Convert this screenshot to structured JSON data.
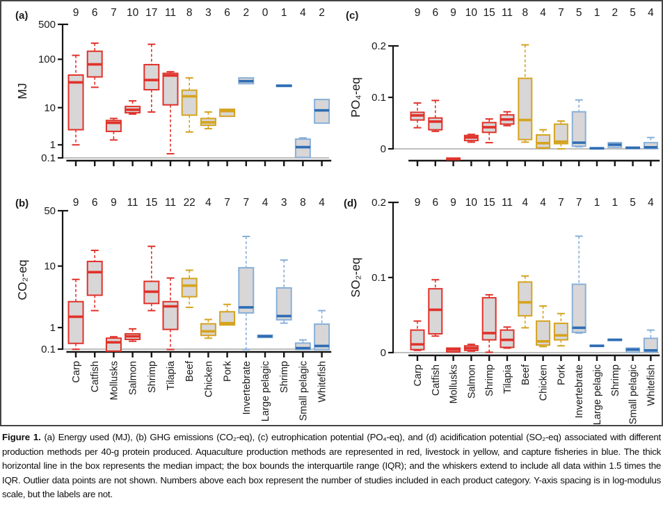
{
  "figure": {
    "caption_label": "Figure 1.",
    "caption_text": "(a) Energy used (MJ), (b) GHG emissions (CO₂-eq), (c) eutrophication potential (PO₄-eq), and (d) acidification potential (SO₂-eq) associated with different production methods per 40-g protein produced. Aquaculture production methods are represented in red, livestock in yellow, and capture fisheries in blue. The thick horizontal line in the box represents the median impact; the box bounds the interquartile range (IQR); and the whiskers extend to include all data within 1.5 times the IQR. Outlier data points are not shown. Numbers above each box represent the number of studies included in each product category. Y-axis spacing is in log-modulus scale, but the labels are not."
  },
  "colors": {
    "aquaculture_red": "#e0312a",
    "livestock_yellow": "#d5a31e",
    "fisheries_blue_border": "#88b0da",
    "fisheries_blue_median": "#2e6db4",
    "box_fill": "#d8d6d6",
    "axis_black": "#141414",
    "baseline_gray": "#a9a9a9",
    "text_color": "#1a1a1a"
  },
  "categories": [
    "Carp",
    "Catfish",
    "Mollusks",
    "Salmon",
    "Shrimp",
    "Tilapia",
    "Beef",
    "Chicken",
    "Pork",
    "Invertebrate",
    "Large pelagic",
    "Shrimp",
    "Small pelagic",
    "Whitefish"
  ],
  "category_groups": [
    "aquaculture",
    "aquaculture",
    "aquaculture",
    "aquaculture",
    "aquaculture",
    "aquaculture",
    "livestock",
    "livestock",
    "livestock",
    "fisheries",
    "fisheries",
    "fisheries",
    "fisheries",
    "fisheries"
  ],
  "chart_data": [
    {
      "type": "box",
      "panel_label": "(a)",
      "ylabel": "MJ",
      "scale": "log-modulus",
      "yticks": [
        "500",
        "100",
        "10",
        "1",
        "0.1"
      ],
      "ytick_values": [
        500,
        100,
        10,
        1,
        0.1
      ],
      "ylim": [
        0.1,
        500
      ],
      "counts": [
        9,
        6,
        7,
        10,
        17,
        11,
        8,
        3,
        6,
        2,
        0,
        1,
        4,
        2
      ],
      "show_category_labels": false,
      "boxes": [
        {
          "lo": 1,
          "q1": 3,
          "med": 34,
          "q3": 48,
          "hi": 120
        },
        {
          "lo": 27,
          "q1": 44,
          "med": 79,
          "q3": 145,
          "hi": 210
        },
        {
          "lo": 1.5,
          "q1": 2.7,
          "med": 4.5,
          "q3": 5.1,
          "hi": 5.7
        },
        {
          "lo": 7.2,
          "q1": 7.7,
          "med": 9,
          "q3": 10.6,
          "hi": 14
        },
        {
          "lo": 8,
          "q1": 24,
          "med": 38,
          "q3": 78,
          "hi": 200
        },
        {
          "lo": 0.33,
          "q1": 11.5,
          "med": 47,
          "q3": 52,
          "hi": 56
        },
        {
          "lo": 2.6,
          "q1": 6.8,
          "med": 17.5,
          "q3": 23.5,
          "hi": 42
        },
        {
          "lo": 3.2,
          "q1": 3.9,
          "med": 4.6,
          "q3": 5.7,
          "hi": 8
        },
        {
          "q1": 6.4,
          "med": 8.4,
          "q3": 9.2
        },
        {
          "q1": 32,
          "med": 36,
          "q3": 42
        },
        null,
        {
          "med": 29
        },
        {
          "q1": 0.12,
          "med": 0.8,
          "q3": 1.6,
          "hi": 1.75
        },
        {
          "q1": 4.4,
          "med": 8.7,
          "q3": 15
        }
      ]
    },
    {
      "type": "box",
      "panel_label": "(b)",
      "ylabel": "CO₂-eq",
      "scale": "log-modulus",
      "yticks": [
        "50",
        "10",
        "1",
        "0.1"
      ],
      "ytick_values": [
        50,
        10,
        1,
        0.1
      ],
      "ylim": [
        0.1,
        50
      ],
      "counts": [
        9,
        6,
        9,
        11,
        15,
        11,
        22,
        4,
        7,
        7,
        4,
        3,
        8,
        4
      ],
      "show_category_labels": true,
      "boxes": [
        {
          "lo": 0.095,
          "q1": 0.29,
          "med": 1.7,
          "q3": 3.1,
          "hi": 6.6
        },
        {
          "lo": 2.2,
          "q1": 3.9,
          "med": 8.3,
          "q3": 11.5,
          "hi": 16
        },
        {
          "q1": 0.04,
          "med": 0.33,
          "q3": 0.49,
          "hi": 0.55
        },
        {
          "lo": 0.37,
          "q1": 0.44,
          "med": 0.57,
          "q3": 0.68,
          "hi": 0.93
        },
        {
          "lo": 2.2,
          "q1": 2.9,
          "med": 4.4,
          "q3": 6.2,
          "hi": 18
        },
        {
          "lo": 0.09,
          "q1": 0.9,
          "med": 2.6,
          "q3": 3.1,
          "hi": 6.9
        },
        {
          "lo": 2.5,
          "q1": 3.7,
          "med": 5.4,
          "q3": 6.8,
          "hi": 8.8
        },
        {
          "lo": 0.49,
          "q1": 0.61,
          "med": 0.8,
          "q3": 1.22,
          "hi": 1.5
        },
        {
          "q1": 1.15,
          "med": 1.26,
          "q3": 2.1,
          "hi": 2.8
        },
        {
          "lo": 0.09,
          "q1": 2.0,
          "med": 2.5,
          "q3": 9.5,
          "hi": 24
        },
        {
          "q1": 0.52,
          "med": 0.57,
          "q3": 0.62
        },
        {
          "lo": 1.26,
          "q1": 1.48,
          "med": 1.75,
          "q3": 5.0,
          "hi": 12
        },
        {
          "q1": 0.09,
          "med": 0.13,
          "q3": 0.3,
          "hi": 0.42
        },
        {
          "q1": 0.085,
          "med": 0.2,
          "q3": 1.2,
          "hi": 2.2
        }
      ]
    },
    {
      "type": "box",
      "panel_label": "(c)",
      "ylabel": "PO₄-eq",
      "scale": "linear",
      "yticks": [
        "0.2",
        "0.1",
        "0"
      ],
      "ytick_values": [
        0.2,
        0.1,
        0
      ],
      "ylim": [
        0,
        0.2
      ],
      "counts": [
        9,
        6,
        9,
        10,
        15,
        11,
        8,
        4,
        7,
        5,
        1,
        2,
        5,
        4
      ],
      "show_category_labels": false,
      "boxes": [
        {
          "lo": 0.041,
          "q1": 0.056,
          "med": 0.065,
          "q3": 0.071,
          "hi": 0.089
        },
        {
          "lo": 0.034,
          "q1": 0.037,
          "med": 0.053,
          "q3": 0.06,
          "hi": 0.094
        },
        {
          "q1": -0.021,
          "med": -0.02,
          "q3": -0.018
        },
        {
          "lo": 0.013,
          "q1": 0.016,
          "med": 0.022,
          "q3": 0.026,
          "hi": 0.028
        },
        {
          "lo": 0.012,
          "q1": 0.032,
          "med": 0.042,
          "q3": 0.051,
          "hi": 0.058
        },
        {
          "lo": 0.045,
          "q1": 0.048,
          "med": 0.057,
          "q3": 0.066,
          "hi": 0.072
        },
        {
          "lo": 0.013,
          "q1": 0.018,
          "med": 0.056,
          "q3": 0.137,
          "hi": 0.202
        },
        {
          "lo": 0.001,
          "q1": 0.002,
          "med": 0.011,
          "q3": 0.027,
          "hi": 0.037
        },
        {
          "lo": 0,
          "q1": 0.01,
          "med": 0.014,
          "q3": 0.048,
          "hi": 0.054
        },
        {
          "lo": 0.004,
          "q1": 0.005,
          "med": 0.012,
          "q3": 0.072,
          "hi": 0.095
        },
        {
          "med": 0.001
        },
        {
          "q1": 0.003,
          "med": 0.008,
          "q3": 0.012
        },
        {
          "med": 0.002
        },
        {
          "lo": 0.0005,
          "q1": 0.001,
          "med": 0.003,
          "q3": 0.012,
          "hi": 0.022
        }
      ]
    },
    {
      "type": "box",
      "panel_label": "(d)",
      "ylabel": "SO₂-eq",
      "scale": "linear",
      "yticks": [
        "0.2",
        "0.1",
        "0"
      ],
      "ytick_values": [
        0.2,
        0.1,
        0
      ],
      "ylim": [
        0,
        0.2
      ],
      "counts": [
        9,
        6,
        9,
        10,
        15,
        11,
        4,
        4,
        7,
        7,
        1,
        1,
        5,
        4
      ],
      "show_category_labels": true,
      "boxes": [
        {
          "lo": 0.003,
          "q1": 0.004,
          "med": 0.011,
          "q3": 0.03,
          "hi": 0.042
        },
        {
          "lo": 0.022,
          "q1": 0.025,
          "med": 0.057,
          "q3": 0.085,
          "hi": 0.097
        },
        {
          "q1": 0.001,
          "med": 0.004,
          "q3": 0.006
        },
        {
          "lo": 0.002,
          "q1": 0.003,
          "med": 0.006,
          "q3": 0.009,
          "hi": 0.011
        },
        {
          "lo": 0.0005,
          "q1": 0.017,
          "med": 0.026,
          "q3": 0.073,
          "hi": 0.077
        },
        {
          "lo": 0.006,
          "q1": 0.007,
          "med": 0.017,
          "q3": 0.03,
          "hi": 0.034
        },
        {
          "lo": 0.033,
          "q1": 0.049,
          "med": 0.067,
          "q3": 0.094,
          "hi": 0.102
        },
        {
          "lo": 0.008,
          "q1": 0.01,
          "med": 0.015,
          "q3": 0.042,
          "hi": 0.062
        },
        {
          "lo": 0.009,
          "q1": 0.017,
          "med": 0.023,
          "q3": 0.039,
          "hi": 0.052
        },
        {
          "lo": 0.026,
          "q1": 0.027,
          "med": 0.033,
          "q3": 0.091,
          "hi": 0.155
        },
        {
          "med": 0.009
        },
        {
          "med": 0.017
        },
        {
          "q1": 0.0005,
          "med": 0.004,
          "q3": 0.006
        },
        {
          "lo": 0.001,
          "q1": 0.001,
          "med": 0.003,
          "q3": 0.019,
          "hi": 0.03
        }
      ]
    }
  ]
}
